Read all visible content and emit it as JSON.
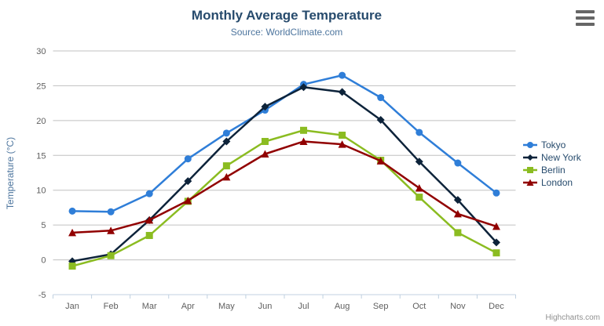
{
  "header": {
    "title": "Monthly Average Temperature",
    "subtitle": "Source: WorldClimate.com"
  },
  "credits_label": "Highcharts.com",
  "menu_icon": "hamburger-icon",
  "colors": {
    "title": "#274b6d",
    "subtitle": "#4d759e",
    "axis_labels": "#606060",
    "yaxis_title": "#4d759e",
    "gridline": "#c0c0c0",
    "xaxis_line": "#c0d0e0",
    "legend_text": "#274b6d",
    "credits": "#909090"
  },
  "chart_data": {
    "type": "line",
    "title": "Monthly Average Temperature",
    "subtitle": "Source: WorldClimate.com",
    "categories": [
      "Jan",
      "Feb",
      "Mar",
      "Apr",
      "May",
      "Jun",
      "Jul",
      "Aug",
      "Sep",
      "Oct",
      "Nov",
      "Dec"
    ],
    "xlabel": "",
    "ylabel": "Temperature (°C)",
    "ylim": [
      -5,
      30
    ],
    "yticks": [
      -5,
      0,
      5,
      10,
      15,
      20,
      25,
      30
    ],
    "grid": true,
    "legend_position": "right-middle",
    "series": [
      {
        "name": "Tokyo",
        "color": "#2f7ed8",
        "marker": "circle",
        "values": [
          7.0,
          6.9,
          9.5,
          14.5,
          18.2,
          21.5,
          25.2,
          26.5,
          23.3,
          18.3,
          13.9,
          9.6
        ]
      },
      {
        "name": "New York",
        "color": "#0d233a",
        "marker": "diamond",
        "values": [
          -0.2,
          0.8,
          5.7,
          11.3,
          17.0,
          22.0,
          24.8,
          24.1,
          20.1,
          14.1,
          8.6,
          2.5
        ]
      },
      {
        "name": "Berlin",
        "color": "#8bbc21",
        "marker": "square",
        "values": [
          -0.9,
          0.6,
          3.5,
          8.4,
          13.5,
          17.0,
          18.6,
          17.9,
          14.3,
          9.0,
          3.9,
          1.0
        ]
      },
      {
        "name": "London",
        "color": "#910000",
        "marker": "triangle",
        "values": [
          3.9,
          4.2,
          5.7,
          8.5,
          11.9,
          15.2,
          17.0,
          16.6,
          14.2,
          10.3,
          6.6,
          4.8
        ]
      }
    ]
  }
}
